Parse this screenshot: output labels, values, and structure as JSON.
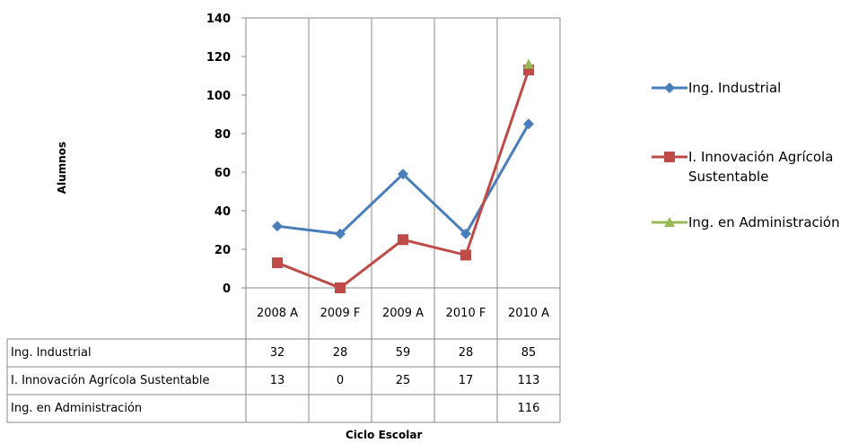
{
  "chart_data": {
    "type": "line",
    "x_label": "Ciclo Escolar",
    "y_label": "Alumnos",
    "categories": [
      "2008 A",
      "2009 F",
      "2009 A",
      "2010 F",
      "2010 A"
    ],
    "series": [
      {
        "name": "Ing. Industrial",
        "color": "#4a7ebb",
        "marker": "diamond",
        "values": [
          32,
          28,
          59,
          28,
          85
        ]
      },
      {
        "name": "I. Innovación Agrícola Sustentable",
        "color": "#be4b48",
        "marker": "square",
        "values": [
          13,
          0,
          25,
          17,
          113
        ]
      },
      {
        "name": "Ing. en Administración",
        "color": "#98b954",
        "marker": "triangle",
        "values": [
          null,
          null,
          null,
          null,
          116
        ]
      }
    ],
    "ylim": [
      0,
      140
    ],
    "yticks": [
      0,
      20,
      40,
      60,
      80,
      100,
      120,
      140
    ],
    "legend": "right",
    "data_table": true
  }
}
